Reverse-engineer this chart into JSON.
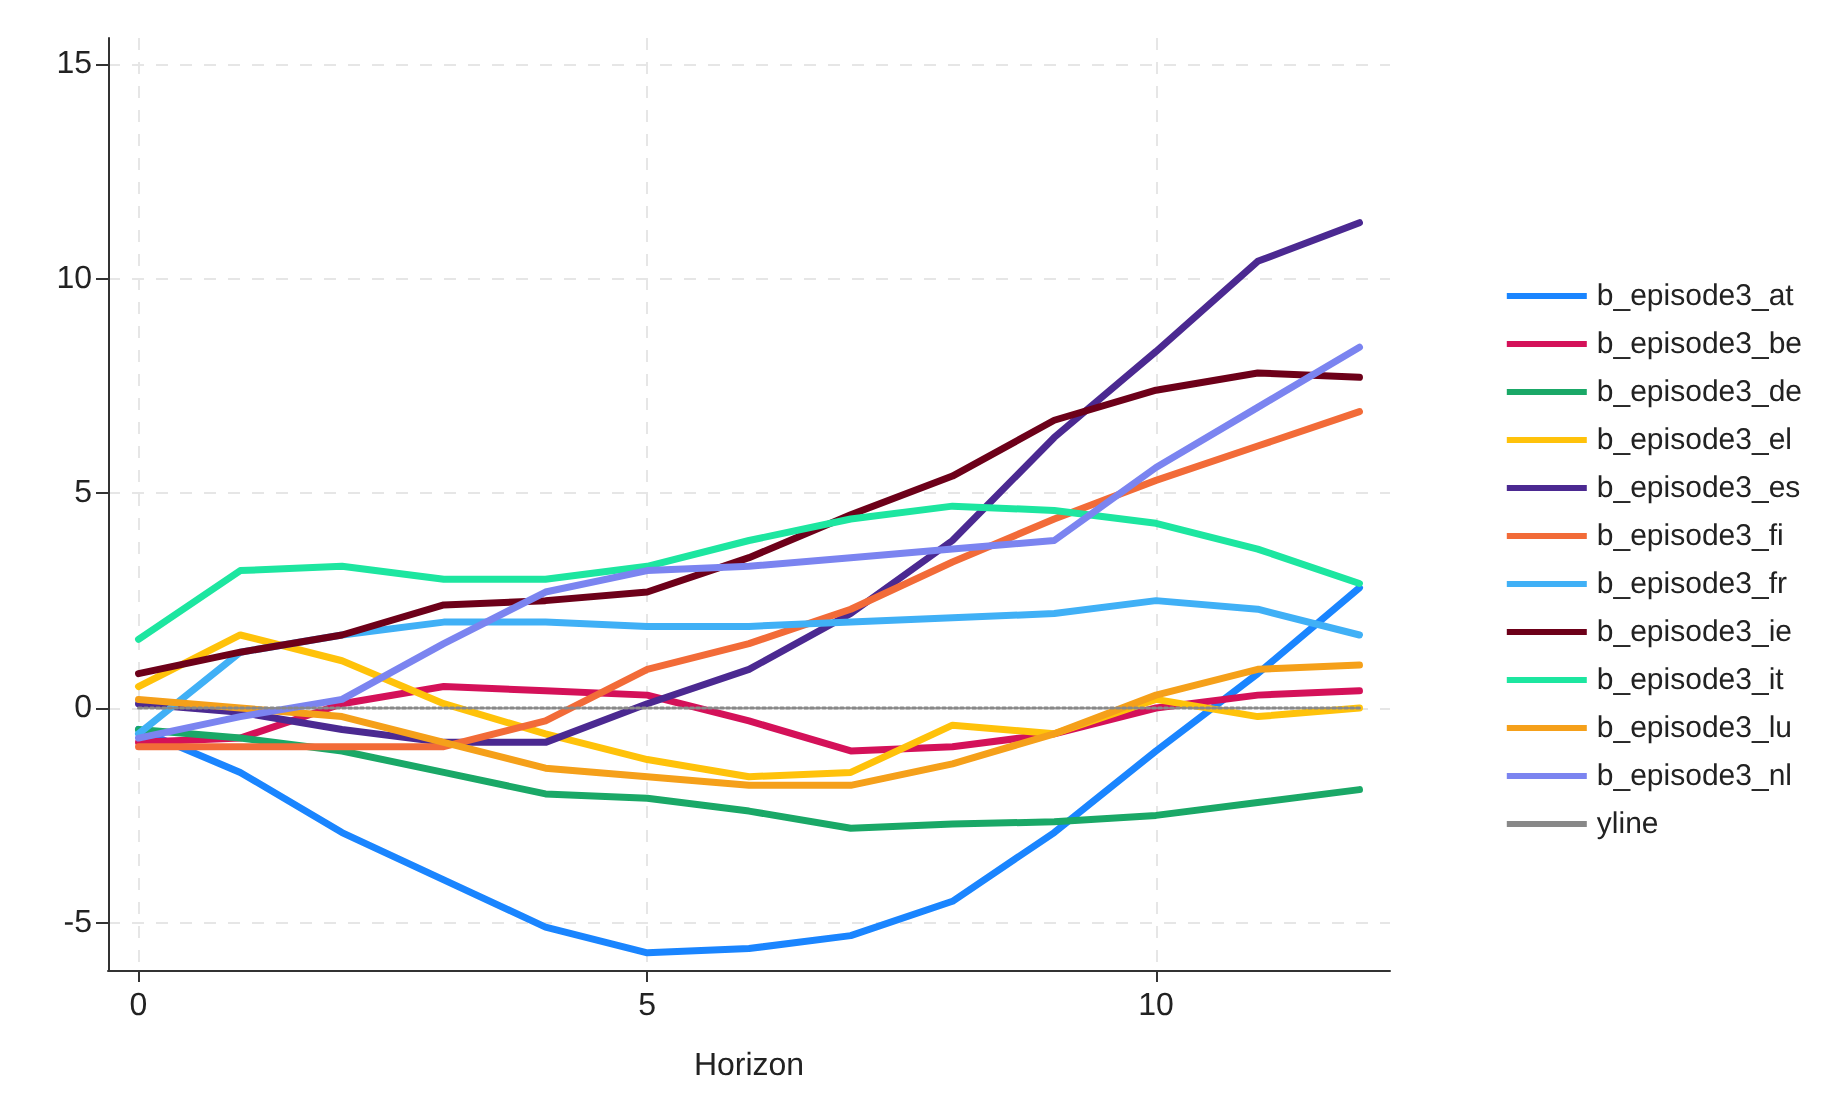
{
  "chart_data": {
    "type": "line",
    "xlabel": "Horizon",
    "x": [
      0,
      1,
      2,
      3,
      4,
      5,
      6,
      7,
      8,
      9,
      10,
      11,
      12
    ],
    "xlim": [
      -0.3,
      12.3
    ],
    "xticks": [
      0,
      5,
      10
    ],
    "ylim": [
      -6.1,
      15.6
    ],
    "yticks": [
      -5,
      0,
      5,
      10,
      15
    ],
    "grid": true,
    "legend": "right",
    "marker": "none",
    "line_style": "solid",
    "series": [
      {
        "name": "b_episode3_at",
        "color": "#1a85ff",
        "values": [
          -0.5,
          -1.5,
          -2.9,
          -4.0,
          -5.1,
          -5.7,
          -5.6,
          -5.3,
          -4.5,
          -2.9,
          -1.0,
          0.8,
          2.8
        ]
      },
      {
        "name": "b_episode3_be",
        "color": "#d41159",
        "values": [
          -0.8,
          -0.7,
          0.1,
          0.5,
          0.4,
          0.3,
          -0.3,
          -1.0,
          -0.9,
          -0.6,
          0.0,
          0.3,
          0.4
        ]
      },
      {
        "name": "b_episode3_de",
        "color": "#1aa867",
        "values": [
          -0.5,
          -0.7,
          -1.0,
          -1.5,
          -2.0,
          -2.1,
          -2.4,
          -2.8,
          -2.7,
          -2.65,
          -2.5,
          -2.2,
          -1.9
        ]
      },
      {
        "name": "b_episode3_el",
        "color": "#ffc20a",
        "values": [
          0.5,
          1.7,
          1.1,
          0.1,
          -0.6,
          -1.2,
          -1.6,
          -1.5,
          -0.4,
          -0.6,
          0.2,
          -0.2,
          0.0
        ]
      },
      {
        "name": "b_episode3_es",
        "color": "#4b2991",
        "values": [
          0.1,
          -0.1,
          -0.5,
          -0.8,
          -0.8,
          0.1,
          0.9,
          2.2,
          3.9,
          6.3,
          8.3,
          10.4,
          11.3
        ]
      },
      {
        "name": "b_episode3_fi",
        "color": "#f26b38",
        "values": [
          -0.9,
          -0.9,
          -0.9,
          -0.9,
          -0.3,
          0.9,
          1.5,
          2.3,
          3.4,
          4.4,
          5.3,
          6.1,
          6.9
        ]
      },
      {
        "name": "b_episode3_fr",
        "color": "#40b0f6",
        "values": [
          -0.6,
          1.3,
          1.7,
          2.0,
          2.0,
          1.9,
          1.9,
          2.0,
          2.1,
          2.2,
          2.5,
          2.3,
          1.7
        ]
      },
      {
        "name": "b_episode3_ie",
        "color": "#6d0019",
        "values": [
          0.8,
          1.3,
          1.7,
          2.4,
          2.5,
          2.7,
          3.5,
          4.5,
          5.4,
          6.7,
          7.4,
          7.8,
          7.7
        ]
      },
      {
        "name": "b_episode3_it",
        "color": "#1de6a0",
        "values": [
          1.6,
          3.2,
          3.3,
          3.0,
          3.0,
          3.3,
          3.9,
          4.4,
          4.7,
          4.6,
          4.3,
          3.7,
          2.9
        ]
      },
      {
        "name": "b_episode3_lu",
        "color": "#f5a01a",
        "values": [
          0.2,
          0.0,
          -0.2,
          -0.8,
          -1.4,
          -1.6,
          -1.8,
          -1.8,
          -1.3,
          -0.6,
          0.3,
          0.9,
          1.0
        ]
      },
      {
        "name": "b_episode3_nl",
        "color": "#7b84f0",
        "values": [
          -0.7,
          -0.2,
          0.2,
          1.5,
          2.7,
          3.2,
          3.3,
          3.5,
          3.7,
          3.9,
          5.6,
          7.0,
          8.4
        ]
      },
      {
        "name": "yline",
        "color": "#888888",
        "line_style": "dotted",
        "values": [
          0,
          0,
          0,
          0,
          0,
          0,
          0,
          0,
          0,
          0,
          0,
          0,
          0
        ]
      }
    ]
  }
}
